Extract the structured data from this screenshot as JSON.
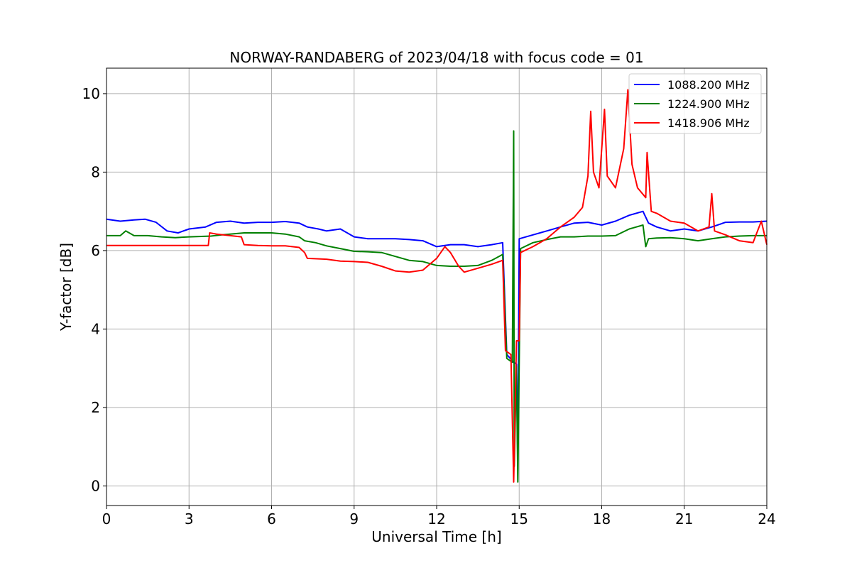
{
  "chart_data": {
    "type": "line",
    "title": "NORWAY-RANDABERG of 2023/04/18 with focus code = 01",
    "xlabel": "Universal Time [h]",
    "ylabel": "Y-factor [dB]",
    "xlim": [
      0,
      24
    ],
    "ylim": [
      -0.5,
      10.65
    ],
    "xticks": [
      0,
      3,
      6,
      9,
      12,
      15,
      18,
      21,
      24
    ],
    "yticks": [
      0,
      2,
      4,
      6,
      8,
      10
    ],
    "grid": true,
    "legend_position": "top-right",
    "series": [
      {
        "name": "1088.200 MHz",
        "color": "#0000ff",
        "points": [
          [
            0,
            6.8
          ],
          [
            0.5,
            6.75
          ],
          [
            1,
            6.78
          ],
          [
            1.4,
            6.8
          ],
          [
            1.8,
            6.72
          ],
          [
            2.2,
            6.5
          ],
          [
            2.6,
            6.45
          ],
          [
            3,
            6.55
          ],
          [
            3.6,
            6.6
          ],
          [
            4,
            6.72
          ],
          [
            4.5,
            6.75
          ],
          [
            5,
            6.7
          ],
          [
            5.5,
            6.72
          ],
          [
            6,
            6.72
          ],
          [
            6.5,
            6.74
          ],
          [
            7,
            6.7
          ],
          [
            7.3,
            6.6
          ],
          [
            7.7,
            6.55
          ],
          [
            8,
            6.5
          ],
          [
            8.5,
            6.55
          ],
          [
            9,
            6.35
          ],
          [
            9.5,
            6.3
          ],
          [
            10,
            6.3
          ],
          [
            10.5,
            6.3
          ],
          [
            11,
            6.28
          ],
          [
            11.5,
            6.25
          ],
          [
            12,
            6.1
          ],
          [
            12.5,
            6.15
          ],
          [
            13,
            6.15
          ],
          [
            13.5,
            6.1
          ],
          [
            14,
            6.15
          ],
          [
            14.4,
            6.2
          ],
          [
            14.55,
            3.35
          ],
          [
            14.8,
            3.15
          ],
          [
            14.9,
            3.1
          ],
          [
            14.95,
            0.5
          ],
          [
            15,
            6.3
          ],
          [
            15.5,
            6.4
          ],
          [
            16,
            6.5
          ],
          [
            16.5,
            6.6
          ],
          [
            17,
            6.7
          ],
          [
            17.5,
            6.72
          ],
          [
            18,
            6.65
          ],
          [
            18.5,
            6.75
          ],
          [
            19,
            6.9
          ],
          [
            19.5,
            7.0
          ],
          [
            19.7,
            6.7
          ],
          [
            20,
            6.6
          ],
          [
            20.5,
            6.5
          ],
          [
            21,
            6.55
          ],
          [
            21.5,
            6.5
          ],
          [
            22,
            6.6
          ],
          [
            22.5,
            6.72
          ],
          [
            23,
            6.73
          ],
          [
            23.5,
            6.73
          ],
          [
            24,
            6.75
          ]
        ]
      },
      {
        "name": "1224.900 MHz",
        "color": "#008000",
        "points": [
          [
            0,
            6.38
          ],
          [
            0.5,
            6.38
          ],
          [
            0.7,
            6.5
          ],
          [
            1,
            6.38
          ],
          [
            1.5,
            6.38
          ],
          [
            2,
            6.35
          ],
          [
            2.5,
            6.33
          ],
          [
            3,
            6.35
          ],
          [
            3.8,
            6.37
          ],
          [
            4.2,
            6.4
          ],
          [
            5,
            6.45
          ],
          [
            5.5,
            6.45
          ],
          [
            6,
            6.45
          ],
          [
            6.5,
            6.42
          ],
          [
            7,
            6.35
          ],
          [
            7.2,
            6.25
          ],
          [
            7.6,
            6.2
          ],
          [
            8,
            6.12
          ],
          [
            8.5,
            6.05
          ],
          [
            9,
            5.98
          ],
          [
            9.5,
            5.97
          ],
          [
            10,
            5.95
          ],
          [
            10.5,
            5.85
          ],
          [
            11,
            5.75
          ],
          [
            11.5,
            5.72
          ],
          [
            12,
            5.62
          ],
          [
            12.5,
            5.6
          ],
          [
            13,
            5.6
          ],
          [
            13.5,
            5.62
          ],
          [
            14,
            5.75
          ],
          [
            14.4,
            5.9
          ],
          [
            14.55,
            3.25
          ],
          [
            14.75,
            3.15
          ],
          [
            14.8,
            9.05
          ],
          [
            14.82,
            0.5
          ],
          [
            14.9,
            3.05
          ],
          [
            14.95,
            0.1
          ],
          [
            15.05,
            6.05
          ],
          [
            15.5,
            6.2
          ],
          [
            16,
            6.28
          ],
          [
            16.5,
            6.35
          ],
          [
            17,
            6.35
          ],
          [
            17.5,
            6.37
          ],
          [
            18,
            6.37
          ],
          [
            18.5,
            6.38
          ],
          [
            19,
            6.55
          ],
          [
            19.5,
            6.65
          ],
          [
            19.6,
            6.1
          ],
          [
            19.7,
            6.3
          ],
          [
            20,
            6.32
          ],
          [
            20.5,
            6.33
          ],
          [
            21,
            6.3
          ],
          [
            21.5,
            6.25
          ],
          [
            22,
            6.3
          ],
          [
            22.5,
            6.35
          ],
          [
            23,
            6.37
          ],
          [
            23.5,
            6.38
          ],
          [
            24,
            6.38
          ]
        ]
      },
      {
        "name": "1418.906 MHz",
        "color": "#ff0000",
        "points": [
          [
            0,
            6.13
          ],
          [
            1,
            6.13
          ],
          [
            2,
            6.13
          ],
          [
            3,
            6.13
          ],
          [
            3.7,
            6.13
          ],
          [
            3.75,
            6.45
          ],
          [
            4,
            6.42
          ],
          [
            4.5,
            6.38
          ],
          [
            4.9,
            6.35
          ],
          [
            5,
            6.15
          ],
          [
            5.5,
            6.13
          ],
          [
            6,
            6.12
          ],
          [
            6.5,
            6.12
          ],
          [
            7,
            6.08
          ],
          [
            7.2,
            5.95
          ],
          [
            7.3,
            5.8
          ],
          [
            8,
            5.78
          ],
          [
            8.5,
            5.73
          ],
          [
            9,
            5.72
          ],
          [
            9.5,
            5.7
          ],
          [
            10,
            5.6
          ],
          [
            10.5,
            5.48
          ],
          [
            11,
            5.45
          ],
          [
            11.5,
            5.5
          ],
          [
            12,
            5.8
          ],
          [
            12.3,
            6.1
          ],
          [
            12.5,
            5.95
          ],
          [
            12.8,
            5.6
          ],
          [
            13,
            5.45
          ],
          [
            13.5,
            5.55
          ],
          [
            14,
            5.65
          ],
          [
            14.4,
            5.75
          ],
          [
            14.5,
            3.45
          ],
          [
            14.7,
            3.35
          ],
          [
            14.8,
            0.1
          ],
          [
            14.9,
            3.7
          ],
          [
            15,
            3.7
          ],
          [
            15.05,
            5.95
          ],
          [
            15.5,
            6.1
          ],
          [
            16,
            6.3
          ],
          [
            16.5,
            6.6
          ],
          [
            17,
            6.85
          ],
          [
            17.3,
            7.1
          ],
          [
            17.5,
            7.9
          ],
          [
            17.6,
            9.55
          ],
          [
            17.7,
            8.0
          ],
          [
            17.9,
            7.6
          ],
          [
            18.1,
            9.6
          ],
          [
            18.2,
            7.9
          ],
          [
            18.5,
            7.6
          ],
          [
            18.8,
            8.6
          ],
          [
            18.95,
            10.1
          ],
          [
            19.1,
            8.2
          ],
          [
            19.3,
            7.6
          ],
          [
            19.6,
            7.35
          ],
          [
            19.65,
            8.5
          ],
          [
            19.8,
            7.0
          ],
          [
            20,
            6.95
          ],
          [
            20.5,
            6.75
          ],
          [
            21,
            6.7
          ],
          [
            21.5,
            6.5
          ],
          [
            21.9,
            6.6
          ],
          [
            22,
            7.45
          ],
          [
            22.1,
            6.5
          ],
          [
            22.5,
            6.4
          ],
          [
            23,
            6.25
          ],
          [
            23.5,
            6.2
          ],
          [
            23.8,
            6.75
          ],
          [
            24,
            6.15
          ]
        ]
      }
    ]
  }
}
